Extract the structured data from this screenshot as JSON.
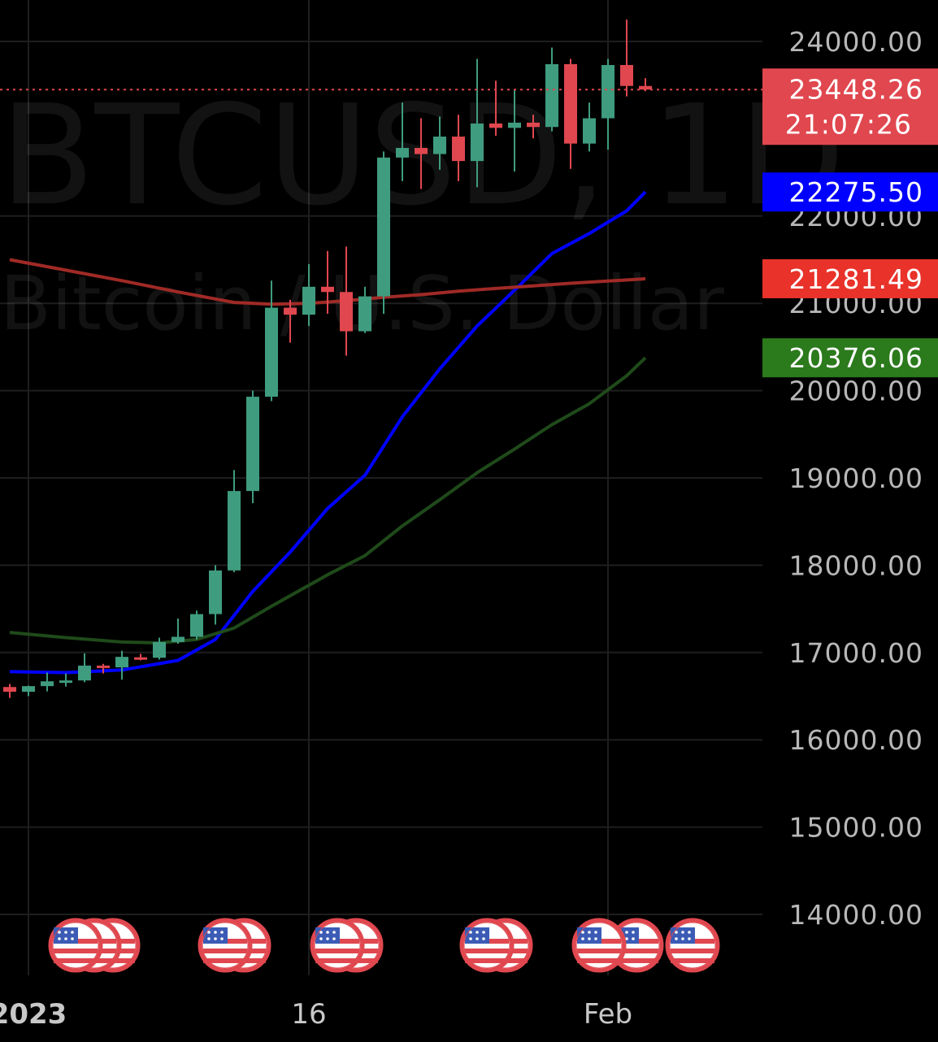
{
  "watermark": {
    "symbol": "BTCUSD, 1D",
    "description": "Bitcoin / U.S. Dollar"
  },
  "colors": {
    "background": "#000000",
    "up": "#3f9c7f",
    "down": "#e0474f",
    "ma_blue": "#0000ff",
    "ma_red": "#a02a26",
    "ma_green": "#1f4a1a",
    "grid": "#1e1e1e"
  },
  "chart_data": {
    "type": "candlestick",
    "symbol": "BTCUSD",
    "interval": "1D",
    "ylim": [
      13400,
      24450
    ],
    "y_ticks": [
      "24000.00",
      "22000.00",
      "21000.00",
      "20000.00",
      "19000.00",
      "18000.00",
      "17000.00",
      "16000.00",
      "15000.00",
      "14000.00"
    ],
    "x_ticks": [
      {
        "label": "2023",
        "date": "2023-01-01"
      },
      {
        "label": "16",
        "date": "2023-01-16"
      },
      {
        "label": "Feb",
        "date": "2023-02-01"
      }
    ],
    "candles": [
      {
        "date": "2022-12-31",
        "o": 16605,
        "h": 16640,
        "l": 16480,
        "c": 16550
      },
      {
        "date": "2023-01-01",
        "o": 16550,
        "h": 16620,
        "l": 16500,
        "c": 16615
      },
      {
        "date": "2023-01-02",
        "o": 16615,
        "h": 16770,
        "l": 16555,
        "c": 16670
      },
      {
        "date": "2023-01-03",
        "o": 16670,
        "h": 16760,
        "l": 16610,
        "c": 16680
      },
      {
        "date": "2023-01-04",
        "o": 16680,
        "h": 16990,
        "l": 16660,
        "c": 16850
      },
      {
        "date": "2023-01-05",
        "o": 16850,
        "h": 16870,
        "l": 16760,
        "c": 16830
      },
      {
        "date": "2023-01-06",
        "o": 16830,
        "h": 17020,
        "l": 16690,
        "c": 16950
      },
      {
        "date": "2023-01-07",
        "o": 16945,
        "h": 16985,
        "l": 16910,
        "c": 16940
      },
      {
        "date": "2023-01-08",
        "o": 16940,
        "h": 17170,
        "l": 16920,
        "c": 17120
      },
      {
        "date": "2023-01-09",
        "o": 17120,
        "h": 17390,
        "l": 17100,
        "c": 17180
      },
      {
        "date": "2023-01-10",
        "o": 17180,
        "h": 17480,
        "l": 17150,
        "c": 17440
      },
      {
        "date": "2023-01-11",
        "o": 17440,
        "h": 18000,
        "l": 17320,
        "c": 17940
      },
      {
        "date": "2023-01-12",
        "o": 17940,
        "h": 19090,
        "l": 17920,
        "c": 18850
      },
      {
        "date": "2023-01-13",
        "o": 18850,
        "h": 20000,
        "l": 18710,
        "c": 19930
      },
      {
        "date": "2023-01-14",
        "o": 19930,
        "h": 21260,
        "l": 19880,
        "c": 20950
      },
      {
        "date": "2023-01-15",
        "o": 20950,
        "h": 21040,
        "l": 20550,
        "c": 20870
      },
      {
        "date": "2023-01-16",
        "o": 20870,
        "h": 21450,
        "l": 20740,
        "c": 21190
      },
      {
        "date": "2023-01-17",
        "o": 21190,
        "h": 21600,
        "l": 20880,
        "c": 21130
      },
      {
        "date": "2023-01-18",
        "o": 21130,
        "h": 21650,
        "l": 20400,
        "c": 20680
      },
      {
        "date": "2023-01-19",
        "o": 20680,
        "h": 21190,
        "l": 20660,
        "c": 21080
      },
      {
        "date": "2023-01-20",
        "o": 21080,
        "h": 22740,
        "l": 20880,
        "c": 22670
      },
      {
        "date": "2023-01-21",
        "o": 22670,
        "h": 23300,
        "l": 22400,
        "c": 22780
      },
      {
        "date": "2023-01-22",
        "o": 22780,
        "h": 23120,
        "l": 22310,
        "c": 22710
      },
      {
        "date": "2023-01-23",
        "o": 22710,
        "h": 23140,
        "l": 22530,
        "c": 22910
      },
      {
        "date": "2023-01-24",
        "o": 22910,
        "h": 23160,
        "l": 22400,
        "c": 22630
      },
      {
        "date": "2023-01-25",
        "o": 22630,
        "h": 23800,
        "l": 22330,
        "c": 23060
      },
      {
        "date": "2023-01-26",
        "o": 23060,
        "h": 23550,
        "l": 22920,
        "c": 23010
      },
      {
        "date": "2023-01-27",
        "o": 23010,
        "h": 23450,
        "l": 22510,
        "c": 23070
      },
      {
        "date": "2023-01-28",
        "o": 23070,
        "h": 23160,
        "l": 22890,
        "c": 23020
      },
      {
        "date": "2023-01-29",
        "o": 23020,
        "h": 23930,
        "l": 22970,
        "c": 23740
      },
      {
        "date": "2023-01-30",
        "o": 23740,
        "h": 23800,
        "l": 22540,
        "c": 22830
      },
      {
        "date": "2023-01-31",
        "o": 22830,
        "h": 23300,
        "l": 22740,
        "c": 23120
      },
      {
        "date": "2023-02-01",
        "o": 23120,
        "h": 23800,
        "l": 22760,
        "c": 23730
      },
      {
        "date": "2023-02-02",
        "o": 23730,
        "h": 24250,
        "l": 23370,
        "c": 23490
      },
      {
        "date": "2023-02-03",
        "o": 23490,
        "h": 23580,
        "l": 23430,
        "c": 23448.26
      }
    ],
    "moving_averages": [
      {
        "color": "#0000ff",
        "last_value": "22275.50",
        "points": [
          [
            0,
            16780
          ],
          [
            3,
            16770
          ],
          [
            6,
            16800
          ],
          [
            9,
            16910
          ],
          [
            11,
            17150
          ],
          [
            13,
            17700
          ],
          [
            15,
            18150
          ],
          [
            17,
            18650
          ],
          [
            19,
            19030
          ],
          [
            21,
            19700
          ],
          [
            23,
            20250
          ],
          [
            25,
            20740
          ],
          [
            27,
            21150
          ],
          [
            29,
            21570
          ],
          [
            31,
            21800
          ],
          [
            33,
            22060
          ],
          [
            34,
            22275.5
          ]
        ]
      },
      {
        "color": "#a02a26",
        "last_value": "21281.49",
        "points": [
          [
            0,
            21500
          ],
          [
            3,
            21380
          ],
          [
            6,
            21260
          ],
          [
            9,
            21130
          ],
          [
            12,
            21010
          ],
          [
            14,
            20990
          ],
          [
            16,
            21000
          ],
          [
            18,
            21030
          ],
          [
            20,
            21070
          ],
          [
            22,
            21100
          ],
          [
            24,
            21140
          ],
          [
            26,
            21170
          ],
          [
            28,
            21200
          ],
          [
            30,
            21230
          ],
          [
            32,
            21255
          ],
          [
            34,
            21281.49
          ]
        ]
      },
      {
        "color": "#1f4a1a",
        "last_value": "20376.06",
        "points": [
          [
            0,
            17230
          ],
          [
            3,
            17170
          ],
          [
            6,
            17120
          ],
          [
            8,
            17110
          ],
          [
            10,
            17150
          ],
          [
            12,
            17280
          ],
          [
            14,
            17530
          ],
          [
            17,
            17890
          ],
          [
            19,
            18110
          ],
          [
            21,
            18450
          ],
          [
            23,
            18750
          ],
          [
            25,
            19060
          ],
          [
            27,
            19330
          ],
          [
            29,
            19610
          ],
          [
            31,
            19850
          ],
          [
            33,
            20170
          ],
          [
            34,
            20376.06
          ]
        ]
      }
    ],
    "current_price": {
      "value": "23448.26",
      "countdown": "21:07:26"
    },
    "event_markers": [
      {
        "dates": [
          "2023-01-03",
          "2023-01-04",
          "2023-01-05"
        ]
      },
      {
        "dates": [
          "2023-01-11",
          "2023-01-12"
        ]
      },
      {
        "dates": [
          "2023-01-17",
          "2023-01-18"
        ]
      },
      {
        "dates": [
          "2023-01-25",
          "2023-01-26"
        ]
      },
      {
        "dates": [
          "2023-01-31",
          "2023-02-02"
        ]
      },
      {
        "dates": [
          "2023-02-05"
        ]
      }
    ]
  }
}
